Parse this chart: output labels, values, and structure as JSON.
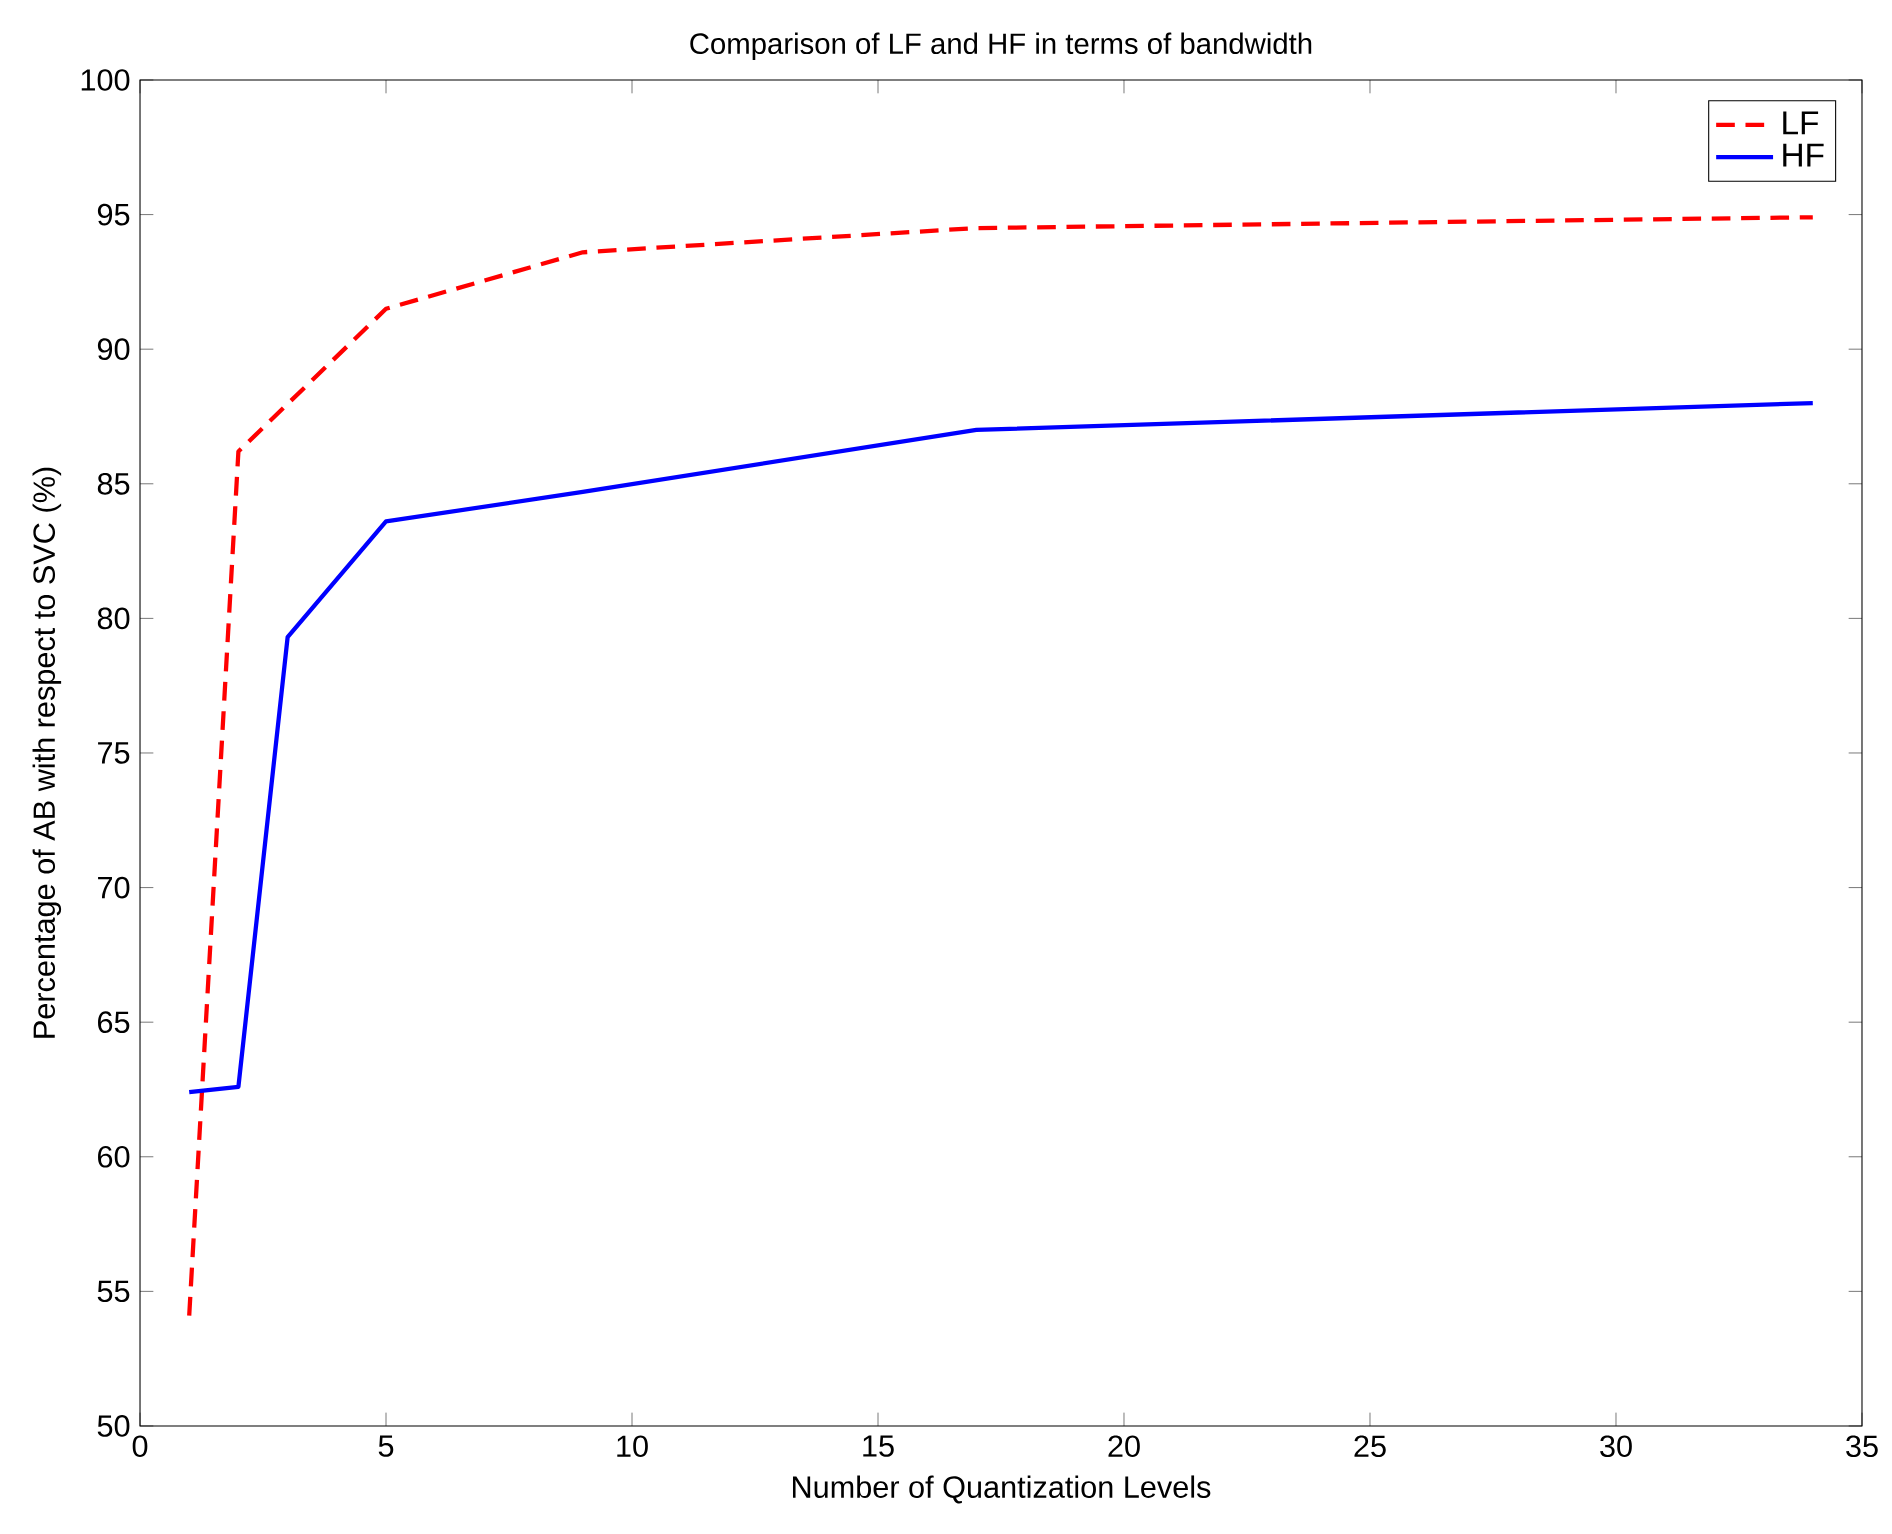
{
  "chart_data": {
    "type": "line",
    "title": "Comparison of LF and HF in terms of bandwidth",
    "xlabel": "Number of Quantization Levels",
    "ylabel": "Percentage of AB with respect to SVC (%)",
    "xlim": [
      0,
      35
    ],
    "xticks": [
      0,
      5,
      10,
      15,
      20,
      25,
      30,
      35
    ],
    "ylim": [
      50,
      100
    ],
    "yticks": [
      50,
      55,
      60,
      65,
      70,
      75,
      80,
      85,
      90,
      95,
      100
    ],
    "grid": false,
    "legend": "top right",
    "series": [
      {
        "name": "LF",
        "color": "#ff0000",
        "line_style": "dashed",
        "x": [
          1,
          2,
          5,
          9,
          17,
          34
        ],
        "values": [
          54.1,
          86.2,
          91.5,
          93.6,
          94.5,
          94.9
        ]
      },
      {
        "name": "HF",
        "color": "#0000ff",
        "line_style": "solid",
        "x": [
          1,
          2,
          3,
          5,
          9,
          17,
          34
        ],
        "values": [
          62.4,
          62.6,
          79.3,
          83.6,
          84.7,
          87.0,
          88.0
        ]
      }
    ]
  }
}
